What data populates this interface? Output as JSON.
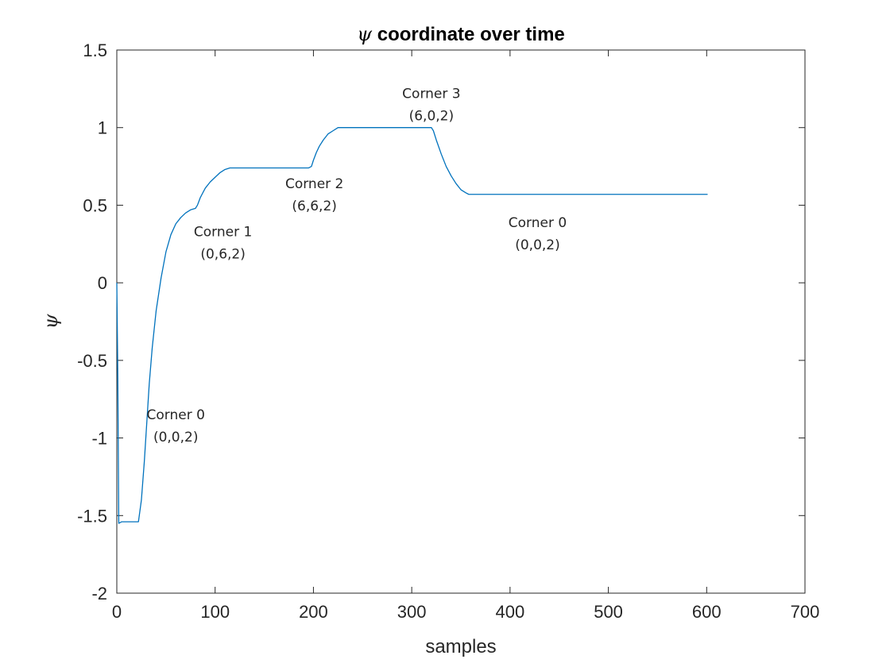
{
  "chart_data": {
    "type": "line",
    "title_symbol": "ψ",
    "title": " coordinate over time",
    "xlabel": "samples",
    "ylabel": "ψ",
    "xlim": [
      0,
      700
    ],
    "ylim": [
      -2,
      1.5
    ],
    "xticks": [
      0,
      100,
      200,
      300,
      400,
      500,
      600,
      700
    ],
    "xtick_labels": [
      "0",
      "100",
      "200",
      "300",
      "400",
      "500",
      "600",
      "700"
    ],
    "yticks": [
      -2,
      -1.5,
      -1,
      -0.5,
      0,
      0.5,
      1,
      1.5
    ],
    "ytick_labels": [
      "-2",
      "-1.5",
      "-1",
      "-0.5",
      "0",
      "0.5",
      "1",
      "1.5"
    ],
    "grid": false,
    "line_color": "#0072BD",
    "series": [
      {
        "x": [
          0,
          1,
          2,
          5,
          10,
          15,
          20,
          22,
          25,
          28,
          30,
          33,
          36,
          40,
          45,
          50,
          55,
          60,
          65,
          70,
          75,
          80,
          82,
          85,
          90,
          95,
          100,
          105,
          110,
          115,
          118,
          150,
          195,
          198,
          200,
          203,
          206,
          210,
          215,
          220,
          225,
          228,
          260,
          300,
          320,
          322,
          325,
          330,
          335,
          340,
          345,
          350,
          355,
          358,
          400,
          500,
          601
        ],
        "y": [
          0,
          -0.6,
          -1.55,
          -1.54,
          -1.54,
          -1.54,
          -1.54,
          -1.54,
          -1.4,
          -1.15,
          -0.95,
          -0.65,
          -0.42,
          -0.18,
          0.03,
          0.2,
          0.31,
          0.38,
          0.42,
          0.45,
          0.47,
          0.48,
          0.5,
          0.55,
          0.61,
          0.65,
          0.68,
          0.71,
          0.73,
          0.74,
          0.74,
          0.74,
          0.74,
          0.75,
          0.79,
          0.84,
          0.88,
          0.92,
          0.96,
          0.98,
          1.0,
          1.0,
          1.0,
          1.0,
          1.0,
          0.98,
          0.92,
          0.83,
          0.75,
          0.69,
          0.64,
          0.6,
          0.58,
          0.57,
          0.57,
          0.57,
          0.57
        ]
      }
    ],
    "annotations": [
      {
        "x": 60,
        "y": -0.88,
        "line1": "Corner 0",
        "line2": "(0,0,2)"
      },
      {
        "x": 108,
        "y": 0.3,
        "line1": "Corner 1",
        "line2": "(0,6,2)"
      },
      {
        "x": 201,
        "y": 0.61,
        "line1": "Corner 2",
        "line2": "(6,6,2)"
      },
      {
        "x": 320,
        "y": 1.19,
        "line1": "Corner 3",
        "line2": "(6,0,2)"
      },
      {
        "x": 428,
        "y": 0.36,
        "line1": "Corner 0",
        "line2": "(0,0,2)"
      }
    ]
  }
}
